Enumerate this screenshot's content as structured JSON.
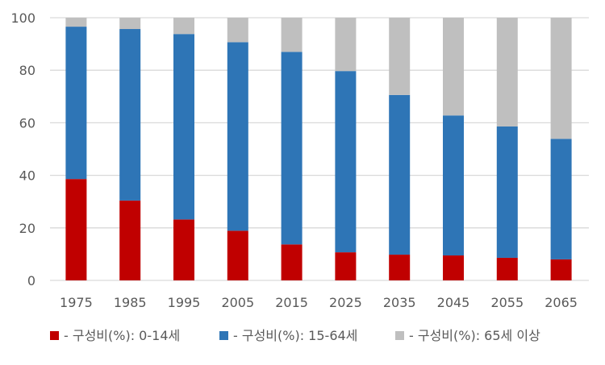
{
  "chart_data": {
    "type": "bar",
    "stacked": true,
    "categories": [
      "1975",
      "1985",
      "1995",
      "2005",
      "2015",
      "2025",
      "2035",
      "2045",
      "2055",
      "2065"
    ],
    "series": [
      {
        "name": "- 구성비(%): 0-14세",
        "color": "#c00000",
        "values": [
          38.6,
          30.4,
          23.2,
          18.9,
          13.7,
          10.7,
          9.8,
          9.5,
          8.6,
          8.0
        ]
      },
      {
        "name": "- 구성비(%): 15-64세",
        "color": "#2e75b6",
        "values": [
          58.0,
          65.3,
          70.6,
          71.8,
          73.3,
          69.0,
          60.8,
          53.3,
          50.0,
          45.9
        ]
      },
      {
        "name": "- 구성비(%): 65세 이상",
        "color": "#bfbfbf",
        "values": [
          3.4,
          4.3,
          6.2,
          9.3,
          13.0,
          20.3,
          29.4,
          37.2,
          41.4,
          46.1
        ]
      }
    ],
    "ylim": [
      0,
      100
    ],
    "yticks": [
      "0",
      "20",
      "40",
      "60",
      "80",
      "100"
    ],
    "grid": true,
    "legend": "bottom"
  }
}
